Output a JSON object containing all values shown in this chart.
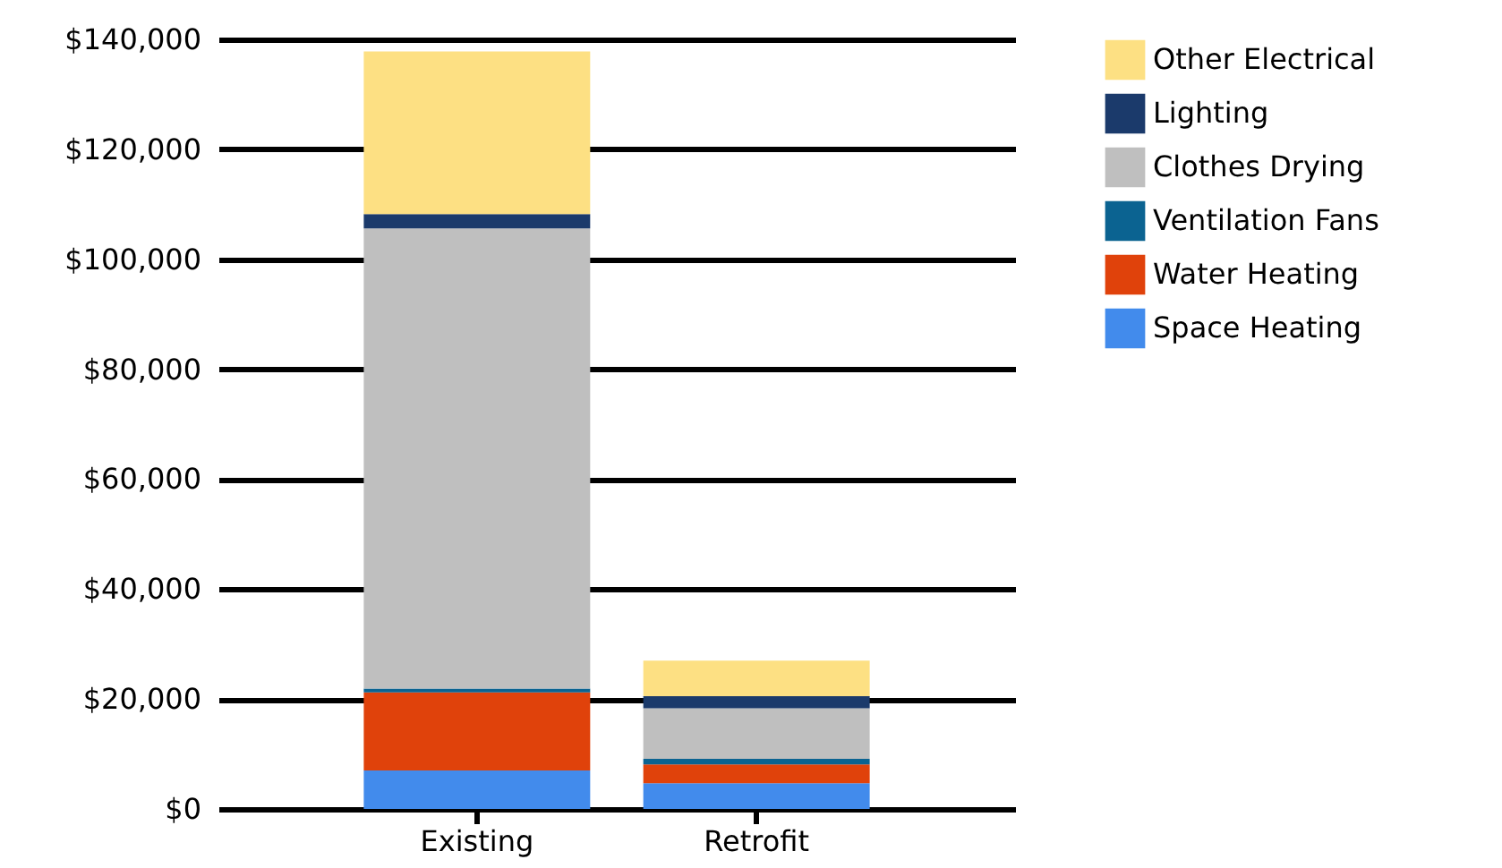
{
  "chart_data": {
    "type": "bar",
    "stacked": true,
    "categories": [
      "Existing",
      "Retrofit"
    ],
    "series": [
      {
        "name": "Space Heating",
        "color": "#428bec",
        "values": [
          7000,
          4700
        ]
      },
      {
        "name": "Water Heating",
        "color": "#e0420b",
        "values": [
          14200,
          3400
        ]
      },
      {
        "name": "Ventilation Fans",
        "color": "#0b6391",
        "values": [
          700,
          1000
        ]
      },
      {
        "name": "Clothes Drying",
        "color": "#bfbfbf",
        "values": [
          83700,
          9200
        ]
      },
      {
        "name": "Lighting",
        "color": "#1b3a6b",
        "values": [
          2600,
          2200
        ]
      },
      {
        "name": "Other Electrical",
        "color": "#fde083",
        "values": [
          29600,
          6500
        ]
      }
    ],
    "ylim": [
      0,
      140000
    ],
    "yticks": [
      {
        "value": 0,
        "label": "$0"
      },
      {
        "value": 20000,
        "label": "$20,000"
      },
      {
        "value": 40000,
        "label": "$40,000"
      },
      {
        "value": 60000,
        "label": "$60,000"
      },
      {
        "value": 80000,
        "label": "$80,000"
      },
      {
        "value": 100000,
        "label": "$100,000"
      },
      {
        "value": 120000,
        "label": "$120,000"
      },
      {
        "value": 140000,
        "label": "$140,000"
      }
    ],
    "grid": "y",
    "legend": "top right"
  }
}
